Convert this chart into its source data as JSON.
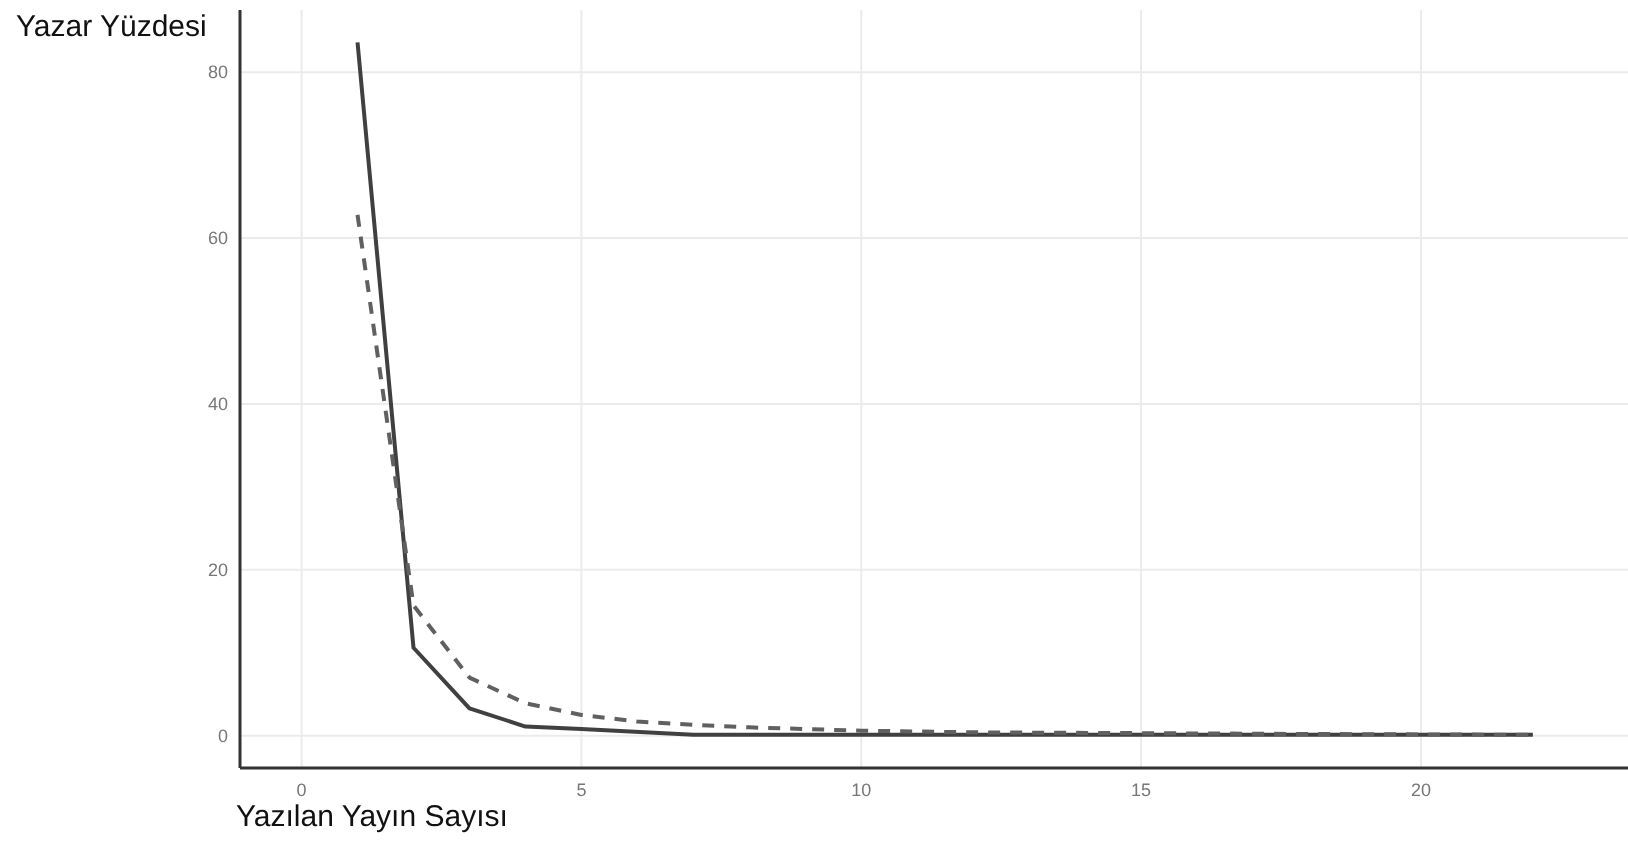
{
  "chart_data": {
    "type": "line",
    "xlabel": "Yazılan Yayın Sayısı",
    "ylabel": "Yazar Yüzdesi",
    "xlim": [
      -1.1,
      23.7
    ],
    "ylim": [
      -3.9,
      87.5
    ],
    "xticks": [
      0,
      5,
      10,
      15,
      20
    ],
    "yticks": [
      0,
      20,
      40,
      60,
      80
    ],
    "grid": true,
    "series": [
      {
        "color": "#404040",
        "line_style": "solid",
        "x": [
          1,
          2,
          3,
          4,
          5,
          7,
          9,
          12,
          22
        ],
        "values": [
          83.6,
          10.6,
          3.3,
          1.1,
          0.8,
          0.1,
          0.1,
          0.1,
          0.1
        ]
      },
      {
        "color": "#606060",
        "line_style": "dashed",
        "x": [
          1,
          2,
          3,
          4,
          5,
          6,
          7,
          8,
          10,
          12,
          15,
          18,
          22
        ],
        "values": [
          62.8,
          15.7,
          7.0,
          3.9,
          2.5,
          1.7,
          1.3,
          1.0,
          0.6,
          0.4,
          0.3,
          0.2,
          0.1
        ]
      }
    ]
  }
}
